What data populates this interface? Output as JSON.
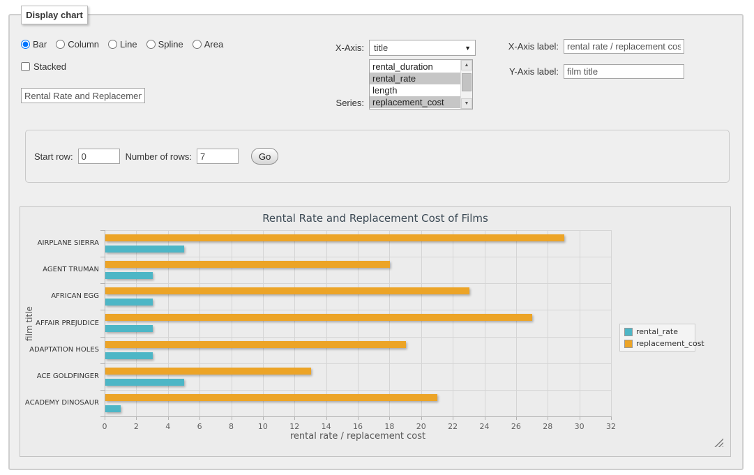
{
  "panel": {
    "legend": "Display chart"
  },
  "chart_type_options": [
    {
      "label": "Bar",
      "selected": true
    },
    {
      "label": "Column",
      "selected": false
    },
    {
      "label": "Line",
      "selected": false
    },
    {
      "label": "Spline",
      "selected": false
    },
    {
      "label": "Area",
      "selected": false
    }
  ],
  "stacked": {
    "label": "Stacked",
    "checked": false
  },
  "title_input": {
    "value": "Rental Rate and Replacement Cost of Films"
  },
  "x_axis_picker": {
    "label": "X-Axis:",
    "value": "title"
  },
  "series_picker": {
    "label": "Series:",
    "options": [
      {
        "label": "rental_duration",
        "selected": false
      },
      {
        "label": "rental_rate",
        "selected": true
      },
      {
        "label": "length",
        "selected": false
      },
      {
        "label": "replacement_cost",
        "selected": true
      }
    ]
  },
  "x_axis_label_field": {
    "label": "X-Axis label:",
    "value": "rental rate / replacement cost"
  },
  "y_axis_label_field": {
    "label": "Y-Axis label:",
    "value": "film title"
  },
  "rows_form": {
    "start_row_label": "Start row:",
    "start_row_value": "0",
    "num_rows_label": "Number of rows:",
    "num_rows_value": "7",
    "go_label": "Go"
  },
  "chart_data": {
    "type": "bar",
    "title": "Rental Rate and Replacement Cost of Films",
    "categories": [
      "AIRPLANE SIERRA",
      "AGENT TRUMAN",
      "AFRICAN EGG",
      "AFFAIR PREJUDICE",
      "ADAPTATION HOLES",
      "ACE GOLDFINGER",
      "ACADEMY DINOSAUR"
    ],
    "series": [
      {
        "name": "rental_rate",
        "color": "#4db6c6",
        "values": [
          4.99,
          2.99,
          2.99,
          2.99,
          2.99,
          4.99,
          0.99
        ]
      },
      {
        "name": "replacement_cost",
        "color": "#eca427",
        "values": [
          28.99,
          17.99,
          22.99,
          26.99,
          18.99,
          12.99,
          20.99
        ]
      }
    ],
    "top_bar_in_group": "replacement_cost",
    "xlabel": "rental rate / replacement cost",
    "ylabel": "film title",
    "xlim": [
      0,
      32
    ],
    "x_tick_step": 2,
    "grid": true,
    "legend_position": "right"
  }
}
